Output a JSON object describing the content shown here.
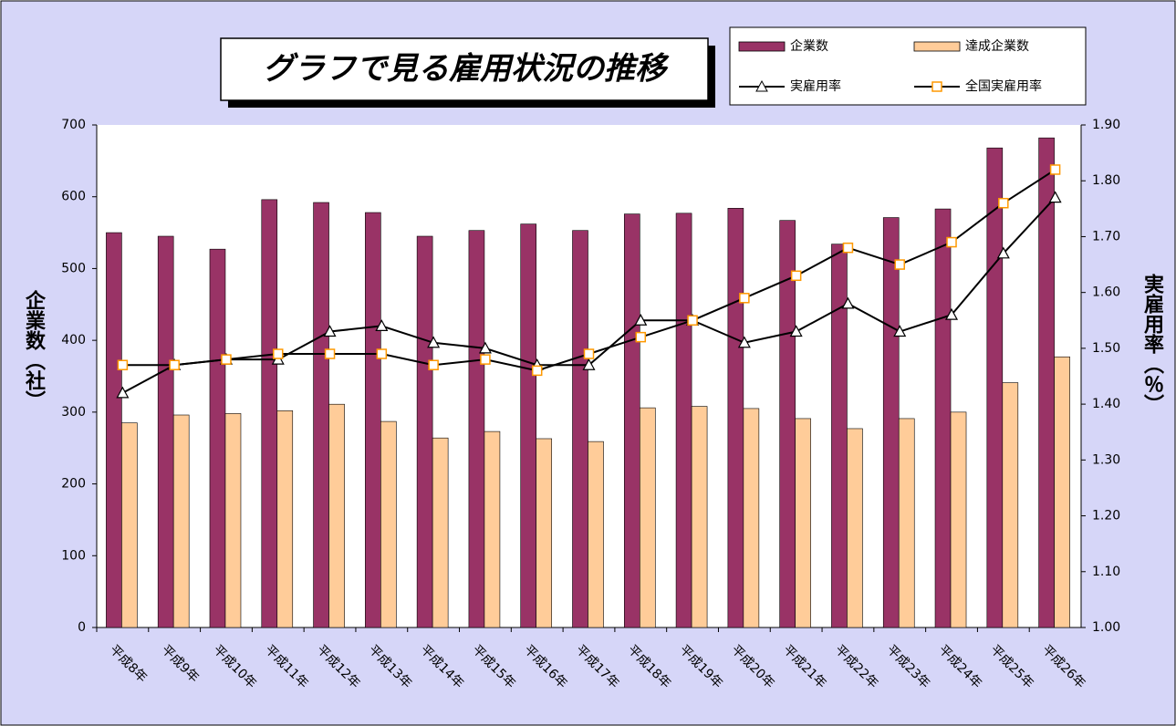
{
  "chart_data": {
    "type": "combo",
    "title": "グラフで見る雇用状況の推移",
    "y_label": "企業数（社）",
    "y2_label": "実雇用率（％）",
    "categories": [
      "平成8年",
      "平成9年",
      "平成10年",
      "平成11年",
      "平成12年",
      "平成13年",
      "平成14年",
      "平成15年",
      "平成16年",
      "平成17年",
      "平成18年",
      "平成19年",
      "平成20年",
      "平成21年",
      "平成22年",
      "平成23年",
      "平成24年",
      "平成25年",
      "平成26年"
    ],
    "series": [
      {
        "name": "企業数",
        "type": "bar",
        "color": "#993366",
        "values": [
          550,
          545,
          527,
          596,
          592,
          578,
          545,
          553,
          562,
          553,
          576,
          577,
          584,
          567,
          534,
          571,
          583,
          668,
          682
        ]
      },
      {
        "name": "達成企業数",
        "type": "bar",
        "color": "#ffcc99",
        "values": [
          285,
          296,
          298,
          302,
          311,
          287,
          264,
          273,
          263,
          259,
          306,
          308,
          305,
          291,
          277,
          291,
          300,
          341,
          377
        ]
      },
      {
        "name": "実雇用率",
        "type": "line",
        "axis": "y2",
        "color": "#000000",
        "marker": "triangle",
        "marker_color": "#000000",
        "values": [
          1.42,
          1.47,
          1.48,
          1.48,
          1.53,
          1.54,
          1.51,
          1.5,
          1.47,
          1.47,
          1.55,
          1.55,
          1.51,
          1.53,
          1.58,
          1.53,
          1.56,
          1.67,
          1.77
        ]
      },
      {
        "name": "全国実雇用率",
        "type": "line",
        "axis": "y2",
        "color": "#000000",
        "marker": "square",
        "marker_color": "#ff9900",
        "values": [
          1.47,
          1.47,
          1.48,
          1.49,
          1.49,
          1.49,
          1.47,
          1.48,
          1.46,
          1.49,
          1.52,
          1.55,
          1.59,
          1.63,
          1.68,
          1.65,
          1.69,
          1.76,
          1.82
        ]
      }
    ],
    "ylim": [
      0,
      700
    ],
    "yticks": [
      0,
      100,
      200,
      300,
      400,
      500,
      600,
      700
    ],
    "y2lim": [
      1.0,
      1.9
    ],
    "y2ticks": [
      {
        "value": 1.0,
        "label": "1.00"
      },
      {
        "value": 1.1,
        "label": "1.10"
      },
      {
        "value": 1.2,
        "label": "1.20"
      },
      {
        "value": 1.3,
        "label": "1.30"
      },
      {
        "value": 1.4,
        "label": "1.40"
      },
      {
        "value": 1.5,
        "label": "1.50"
      },
      {
        "value": 1.6,
        "label": "1.60"
      },
      {
        "value": 1.7,
        "label": "1.70"
      },
      {
        "value": 1.8,
        "label": "1.80"
      },
      {
        "value": 1.9,
        "label": "1.90"
      }
    ],
    "grid": false
  }
}
